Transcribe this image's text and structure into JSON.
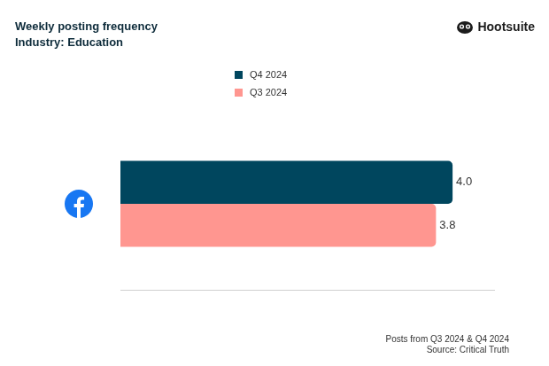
{
  "chart_data": {
    "type": "bar",
    "title": "Weekly posting frequency",
    "subtitle": "Industry: Education",
    "orientation": "horizontal",
    "categories": [
      null
    ],
    "series": [
      {
        "name": "Q4 2024",
        "color": "#00465e",
        "values": [
          4.0
        ],
        "value_labels": [
          "4.0"
        ]
      },
      {
        "name": "Q3 2024",
        "color": "#ff9690",
        "values": [
          3.8
        ],
        "value_labels": [
          "3.8"
        ]
      }
    ],
    "xlim": [
      0,
      4.5
    ],
    "data_labels": true,
    "tick_labels": false,
    "grid": false,
    "legend": "top",
    "annotations": [
      "Posts from Q3 2024 & Q4 2024",
      "Source: Critical Truth"
    ],
    "logo_text": "Hootsuite"
  }
}
